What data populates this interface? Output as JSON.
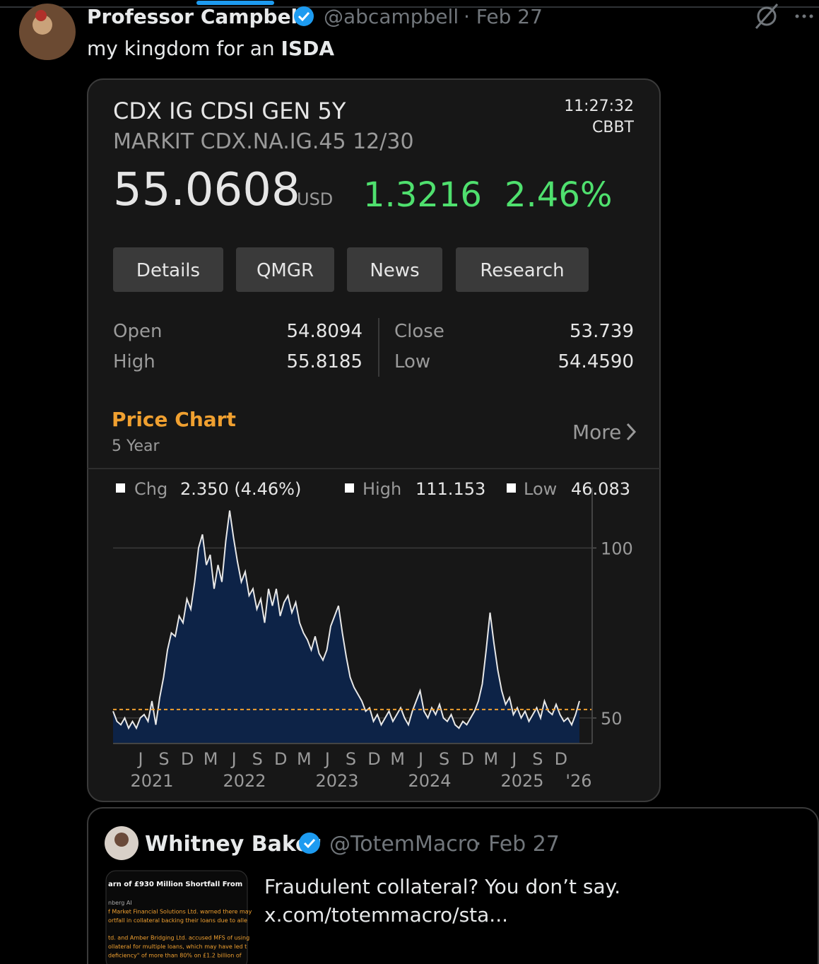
{
  "tweet": {
    "author": "Professor Campbell",
    "handle": "@abcampbell",
    "date": "· Feb 27",
    "text_prefix": "my kingdom for an ",
    "text_bold": "ISDA"
  },
  "card": {
    "title": "CDX IG CDSI GEN 5Y",
    "subtitle": "MARKIT CDX.NA.IG.45 12/30",
    "time": "11:27:32",
    "source": "CBBT",
    "price": "55.0608",
    "currency": "USD",
    "change": "1.3216",
    "change_pct": "2.46%",
    "buttons": [
      "Details",
      "QMGR",
      "News",
      "Research"
    ],
    "stats": [
      {
        "label": "Open",
        "value": "54.8094"
      },
      {
        "label": "High",
        "value": "55.8185"
      },
      {
        "label": "Close",
        "value": "53.739"
      },
      {
        "label": "Low",
        "value": "54.4590"
      }
    ],
    "chart_heading": "Price Chart",
    "chart_period": "5 Year",
    "more": "More",
    "legend": [
      {
        "label": "Chg",
        "value": "2.350 (4.46%)"
      },
      {
        "label": "High",
        "value": "111.153"
      },
      {
        "label": "Low",
        "value": "46.083"
      }
    ],
    "chart": {
      "type": "area",
      "color": "#0d2347",
      "line_color": "#e8e8e8",
      "reference_line": 52.5,
      "ylim": [
        42.5,
        111.5
      ],
      "yticks": [
        50,
        100
      ],
      "month_labels": [
        "J",
        "S",
        "D",
        "M",
        "J",
        "S",
        "D",
        "M",
        "J",
        "S",
        "D",
        "M",
        "J",
        "S",
        "D",
        "M",
        "J",
        "S",
        "D"
      ],
      "year_labels": [
        "2021",
        "2022",
        "2023",
        "2024",
        "2025",
        "'26"
      ],
      "values": [
        52,
        49,
        48,
        50,
        47,
        49,
        47,
        50,
        51,
        49,
        55,
        48,
        56,
        62,
        70,
        75,
        74,
        80,
        78,
        85,
        82,
        90,
        100,
        104,
        95,
        98,
        88,
        95,
        90,
        102,
        111,
        103,
        96,
        90,
        93,
        86,
        88,
        82,
        85,
        78,
        88,
        83,
        88,
        80,
        84,
        86,
        81,
        84,
        78,
        75,
        73,
        70,
        74,
        69,
        67,
        70,
        77,
        80,
        83,
        75,
        68,
        62,
        59,
        57,
        55,
        52,
        53,
        49,
        51,
        48,
        50,
        52,
        49,
        51,
        53,
        50,
        48,
        52,
        55,
        58,
        52,
        50,
        53,
        51,
        54,
        50,
        49,
        51,
        48,
        47,
        49,
        48,
        50,
        52,
        55,
        60,
        70,
        81,
        72,
        64,
        58,
        54,
        56,
        51,
        53,
        50,
        52,
        49,
        51,
        53,
        50,
        55,
        52,
        51,
        54,
        51,
        49,
        50,
        48,
        51,
        55
      ]
    }
  },
  "quoted": {
    "author": "Whitney Baker",
    "handle": "@TotemMacro",
    "date": "· Feb 27",
    "text_lines": [
      "Fraudulent collateral? You don’t say.",
      "x.com/totemmacro/sta..."
    ],
    "image_lines": [
      "arn of £930 Million Shortfall From",
      "nberg AI",
      "f Market Financial Solutions Ltd. warned there may",
      "ortfall in collateral backing their loans due to alle",
      "td. and Amber Bridging Ltd. accused MFS of using",
      "ollateral for multiple loans, which may have led t",
      "deficiency\" of more than 80% on £1.2 billion of"
    ]
  }
}
